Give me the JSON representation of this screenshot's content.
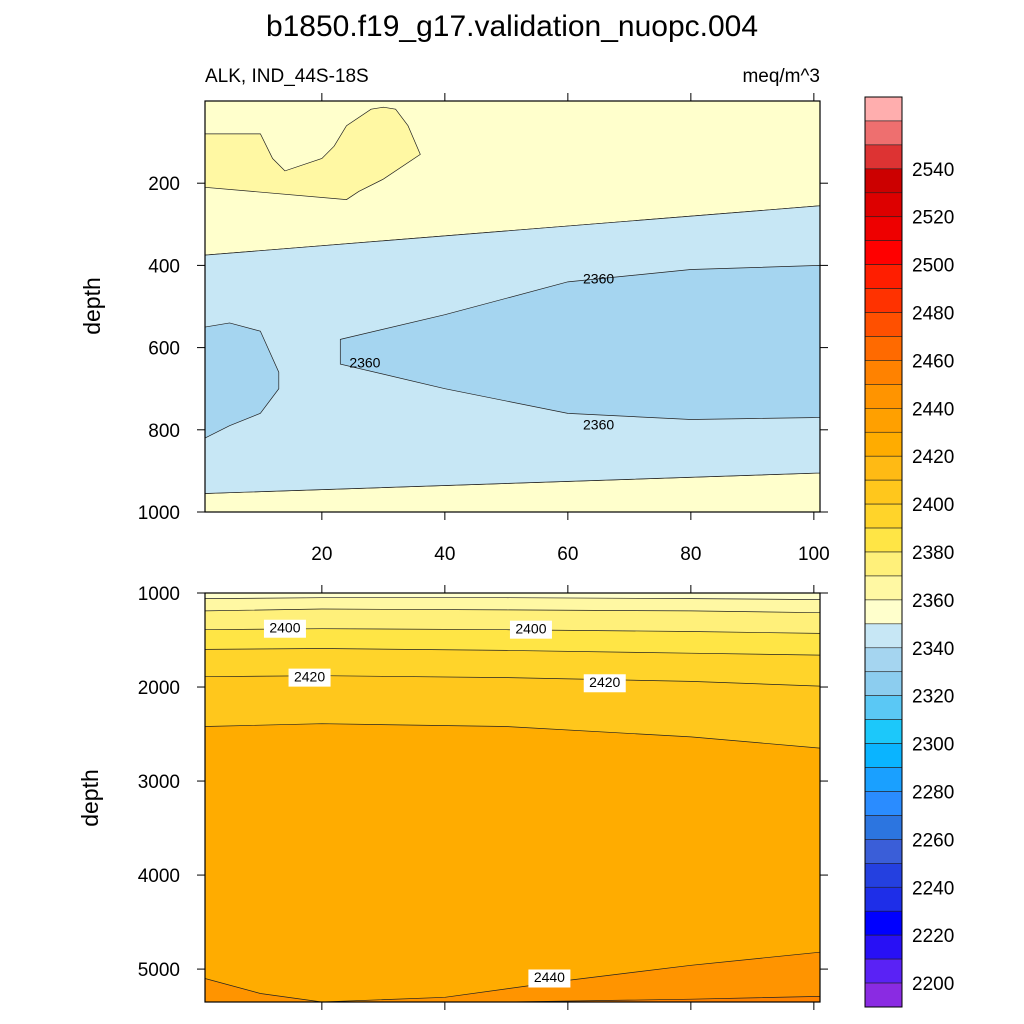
{
  "chart_data": [
    {
      "type": "contour",
      "panel": "upper",
      "title": "b1850.f19_g17.validation_nuopc.004",
      "left_subtitle": "ALK, IND_44S-18S",
      "right_subtitle": "meq/m^3",
      "ylabel": "depth",
      "xlim": [
        1,
        101
      ],
      "ylim": [
        1000,
        0
      ],
      "x_ticks": [
        "20",
        "40",
        "60",
        "80",
        "100"
      ],
      "y_ticks": [
        "200",
        "400",
        "600",
        "800",
        "1000"
      ],
      "contour_labels": [
        {
          "text": "2360",
          "x": 65,
          "y": 435
        },
        {
          "text": "2360",
          "x": 27,
          "y": 640
        },
        {
          "text": "2360",
          "x": 65,
          "y": 790
        }
      ],
      "regions": [
        {
          "name": "2380-2390 band",
          "color": "#fff8a3",
          "x": [
            1,
            10,
            12,
            14,
            20,
            22,
            24,
            28,
            30,
            32,
            34,
            36,
            30,
            26,
            24,
            1
          ],
          "y": [
            80,
            80,
            140,
            170,
            140,
            110,
            60,
            20,
            15,
            20,
            60,
            130,
            190,
            220,
            240,
            210
          ]
        },
        {
          "name": "2360-2370 band (upper)",
          "color": "#c7e7f5",
          "x": [
            1,
            101
          ],
          "ybottom": [
            955,
            905
          ],
          "ytop": [
            375,
            255
          ]
        },
        {
          "name": "2350-2360 core",
          "color": "#a5d5f0",
          "x": [
            23,
            40,
            60,
            80,
            101
          ],
          "ytop": [
            580,
            520,
            440,
            410,
            400
          ],
          "ybottom": [
            640,
            700,
            760,
            775,
            770
          ]
        },
        {
          "name": "2350-2360 west",
          "color": "#a5d5f0",
          "x": [
            1,
            5,
            10,
            13
          ],
          "ytop": [
            550,
            540,
            560,
            660
          ],
          "ybottom": [
            820,
            790,
            760,
            700
          ]
        }
      ]
    },
    {
      "type": "contour",
      "panel": "lower",
      "ylabel": "depth",
      "xlim": [
        1,
        101
      ],
      "ylim": [
        5350,
        1000
      ],
      "y_ticks": [
        "1000",
        "2000",
        "3000",
        "4000",
        "5000"
      ],
      "contour_levels": [
        2370,
        2380,
        2390,
        2400,
        2410,
        2420,
        2430,
        2440
      ],
      "contour_labels": [
        {
          "text": "2400",
          "x": 14,
          "y": 1380
        },
        {
          "text": "2400",
          "x": 54,
          "y": 1390
        },
        {
          "text": "2420",
          "x": 18,
          "y": 1900
        },
        {
          "text": "2420",
          "x": 66,
          "y": 1960
        },
        {
          "text": "2440",
          "x": 57,
          "y": 5100
        }
      ],
      "isolines": [
        {
          "level": 2380,
          "x": [
            1,
            20,
            50,
            80,
            101
          ],
          "y": [
            1060,
            1050,
            1050,
            1060,
            1070
          ]
        },
        {
          "level": 2390,
          "x": [
            1,
            20,
            50,
            80,
            101
          ],
          "y": [
            1190,
            1170,
            1180,
            1190,
            1210
          ]
        },
        {
          "level": 2400,
          "x": [
            1,
            20,
            50,
            80,
            101
          ],
          "y": [
            1390,
            1380,
            1390,
            1410,
            1430
          ]
        },
        {
          "level": 2410,
          "x": [
            1,
            20,
            50,
            80,
            101
          ],
          "y": [
            1600,
            1590,
            1610,
            1640,
            1660
          ]
        },
        {
          "level": 2420,
          "x": [
            1,
            20,
            50,
            80,
            101
          ],
          "y": [
            1890,
            1880,
            1900,
            1940,
            1990
          ]
        },
        {
          "level": 2430,
          "x": [
            1,
            20,
            50,
            80,
            101
          ],
          "y": [
            2420,
            2390,
            2420,
            2530,
            2650
          ]
        },
        {
          "level": 2440,
          "x": [
            1,
            10,
            20,
            40,
            60,
            80,
            101
          ],
          "y": [
            5100,
            5260,
            5350,
            5300,
            5120,
            4960,
            4820
          ]
        },
        {
          "level": 2450,
          "x": [
            1,
            50,
            80,
            101
          ],
          "y": [
            5350,
            5350,
            5320,
            5290
          ]
        }
      ]
    }
  ],
  "colorbar": {
    "colors": [
      "#8a2be2",
      "#5a22f5",
      "#2810f5",
      "#0000ff",
      "#1e2ee8",
      "#2440e0",
      "#3a5ed8",
      "#2c75e0",
      "#2a8cff",
      "#1aa0ff",
      "#0ab4ff",
      "#1cc8fa",
      "#5ac8f5",
      "#8ccdef",
      "#a5d5f0",
      "#c7e7f5",
      "#ffffcc",
      "#fff8a3",
      "#fff07a",
      "#ffe545",
      "#ffd42a",
      "#ffc71c",
      "#ffba14",
      "#ffac00",
      "#ffa000",
      "#ff9400",
      "#ff8200",
      "#ff6a00",
      "#ff5000",
      "#ff3200",
      "#ff1e00",
      "#ff0000",
      "#ee0000",
      "#dd0000",
      "#cc0000",
      "#dd3333",
      "#ee6f6f",
      "#ffaeae"
    ],
    "labels": [
      "2200",
      "2220",
      "2240",
      "2260",
      "2280",
      "2300",
      "2320",
      "2340",
      "2360",
      "2380",
      "2400",
      "2420",
      "2440",
      "2460",
      "2480",
      "2500",
      "2520",
      "2540"
    ]
  }
}
